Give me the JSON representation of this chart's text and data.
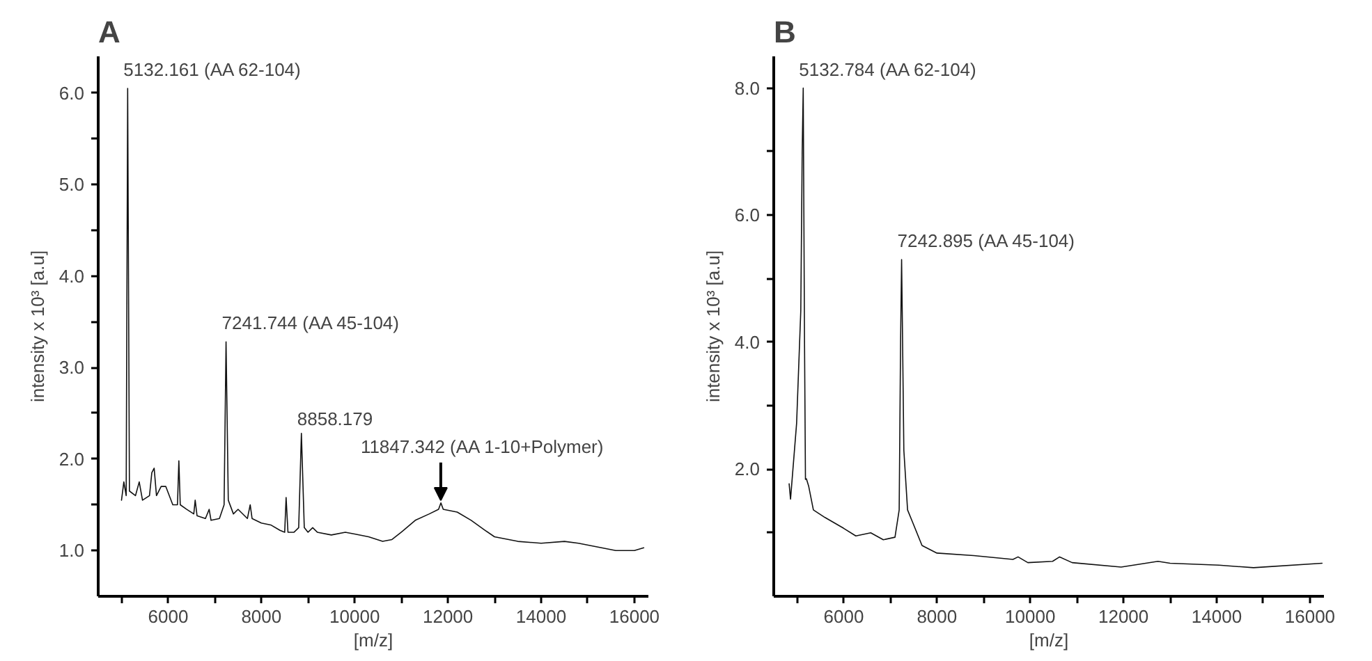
{
  "chart_data": [
    {
      "type": "line",
      "title": "A",
      "xlabel": "[m/z]",
      "ylabel": "intensity x 10³ [a.u]",
      "xlim": [
        4500,
        16300
      ],
      "ylim": [
        0.5,
        6.4
      ],
      "xticks": [
        {
          "value": 5000,
          "label": null
        },
        6000,
        {
          "value": 7000,
          "label": null
        },
        8000,
        {
          "value": 9000,
          "label": null
        },
        10000,
        {
          "value": 11000,
          "label": null
        },
        12000,
        {
          "value": 13000,
          "label": null
        },
        14000,
        {
          "value": 15000,
          "label": null
        },
        16000
      ],
      "yticks": [
        {
          "value": 1,
          "label": "1.0"
        },
        {
          "value": 1.5,
          "label": null
        },
        {
          "value": 2,
          "label": "2.0"
        },
        {
          "value": 2.5,
          "label": null
        },
        {
          "value": 3,
          "label": "3.0"
        },
        {
          "value": 3.5,
          "label": null
        },
        {
          "value": 4,
          "label": "4.0"
        },
        {
          "value": 4.5,
          "label": null
        },
        {
          "value": 5,
          "label": "5.0"
        },
        {
          "value": 5.5,
          "label": null
        },
        {
          "value": 6,
          "label": "6.0"
        }
      ],
      "grid": false,
      "series": [
        {
          "color": "#111111",
          "x": [
            5000,
            5050,
            5100,
            5132,
            5170,
            5300,
            5380,
            5450,
            5600,
            5650,
            5700,
            5750,
            5850,
            5950,
            6100,
            6200,
            6230,
            6260,
            6400,
            6550,
            6580,
            6620,
            6800,
            6880,
            6920,
            7100,
            7200,
            7242,
            7290,
            7400,
            7500,
            7700,
            7760,
            7800,
            8000,
            8200,
            8400,
            8500,
            8530,
            8570,
            8700,
            8800,
            8858,
            8920,
            9000,
            9100,
            9200,
            9500,
            9800,
            10000,
            10300,
            10600,
            10800,
            11000,
            11300,
            11600,
            11800,
            11850,
            11900,
            12200,
            12500,
            12800,
            13000,
            13500,
            14000,
            14500,
            14800,
            15200,
            15600,
            16000,
            16200
          ],
          "values": [
            1.55,
            1.75,
            1.6,
            6.05,
            1.65,
            1.6,
            1.75,
            1.55,
            1.6,
            1.85,
            1.9,
            1.6,
            1.7,
            1.7,
            1.5,
            1.5,
            1.98,
            1.5,
            1.45,
            1.4,
            1.55,
            1.38,
            1.35,
            1.45,
            1.33,
            1.35,
            1.5,
            3.28,
            1.55,
            1.4,
            1.45,
            1.35,
            1.5,
            1.35,
            1.3,
            1.28,
            1.22,
            1.2,
            1.58,
            1.2,
            1.2,
            1.25,
            2.28,
            1.25,
            1.2,
            1.25,
            1.2,
            1.17,
            1.2,
            1.18,
            1.15,
            1.1,
            1.12,
            1.2,
            1.33,
            1.4,
            1.45,
            1.52,
            1.45,
            1.42,
            1.33,
            1.22,
            1.15,
            1.1,
            1.08,
            1.1,
            1.08,
            1.04,
            1.0,
            1.0,
            1.03
          ]
        }
      ],
      "annotations": [
        {
          "text": "5132.161 (AA 62-104)",
          "x": 5132,
          "y": 6.05
        },
        {
          "text": "7241.744 (AA 45-104)",
          "x": 7242,
          "y": 3.28
        },
        {
          "text": "8858.179",
          "x": 8858,
          "y": 2.28
        },
        {
          "text": "11847.342 (AA 1-10+Polymer)",
          "x": 11847,
          "y": 1.52
        }
      ]
    },
    {
      "type": "line",
      "title": "B",
      "xlabel": "[m/z]",
      "ylabel": "intensity x 10³ [a.u]",
      "xlim": [
        4500,
        16300
      ],
      "ylim": [
        0,
        8.5
      ],
      "xticks": [
        {
          "value": 5000,
          "label": null
        },
        6000,
        {
          "value": 7000,
          "label": null
        },
        8000,
        {
          "value": 9000,
          "label": null
        },
        10000,
        {
          "value": 11000,
          "label": null
        },
        12000,
        {
          "value": 13000,
          "label": null
        },
        14000,
        {
          "value": 15000,
          "label": null
        },
        16000
      ],
      "yticks": [
        {
          "value": 1,
          "label": null
        },
        {
          "value": 2,
          "label": "2.0"
        },
        {
          "value": 3,
          "label": null
        },
        {
          "value": 4,
          "label": "4.0"
        },
        {
          "value": 5,
          "label": null
        },
        {
          "value": 6,
          "label": "6.0"
        },
        {
          "value": 7,
          "label": null
        },
        {
          "value": 8,
          "label": "8.0"
        }
      ],
      "grid": false,
      "series": [
        {
          "color": "#111111",
          "x": [
            4830,
            4860,
            4990,
            5080,
            5110,
            5132,
            5160,
            5180,
            5200,
            5250,
            5350,
            5600,
            6000,
            6260,
            6580,
            6850,
            7100,
            7190,
            7220,
            7242,
            7260,
            7290,
            7370,
            7470,
            7680,
            8000,
            8790,
            9630,
            9740,
            9950,
            10480,
            10630,
            10900,
            11950,
            12740,
            13000,
            14050,
            14790,
            16260
          ],
          "values": [
            1.77,
            1.53,
            2.72,
            4.5,
            7.0,
            8.0,
            4.0,
            1.84,
            1.85,
            1.73,
            1.36,
            1.24,
            1.07,
            0.95,
            1.0,
            0.89,
            0.93,
            1.36,
            4.0,
            5.3,
            4.2,
            2.3,
            1.36,
            1.18,
            0.8,
            0.68,
            0.64,
            0.58,
            0.62,
            0.53,
            0.55,
            0.62,
            0.53,
            0.46,
            0.55,
            0.52,
            0.49,
            0.45,
            0.52
          ]
        }
      ],
      "annotations": [
        {
          "text": "5132.784 (AA 62-104)",
          "x": 5132,
          "y": 8.0
        },
        {
          "text": "7242.895 (AA 45-104)",
          "x": 7242,
          "y": 5.3
        }
      ]
    }
  ]
}
